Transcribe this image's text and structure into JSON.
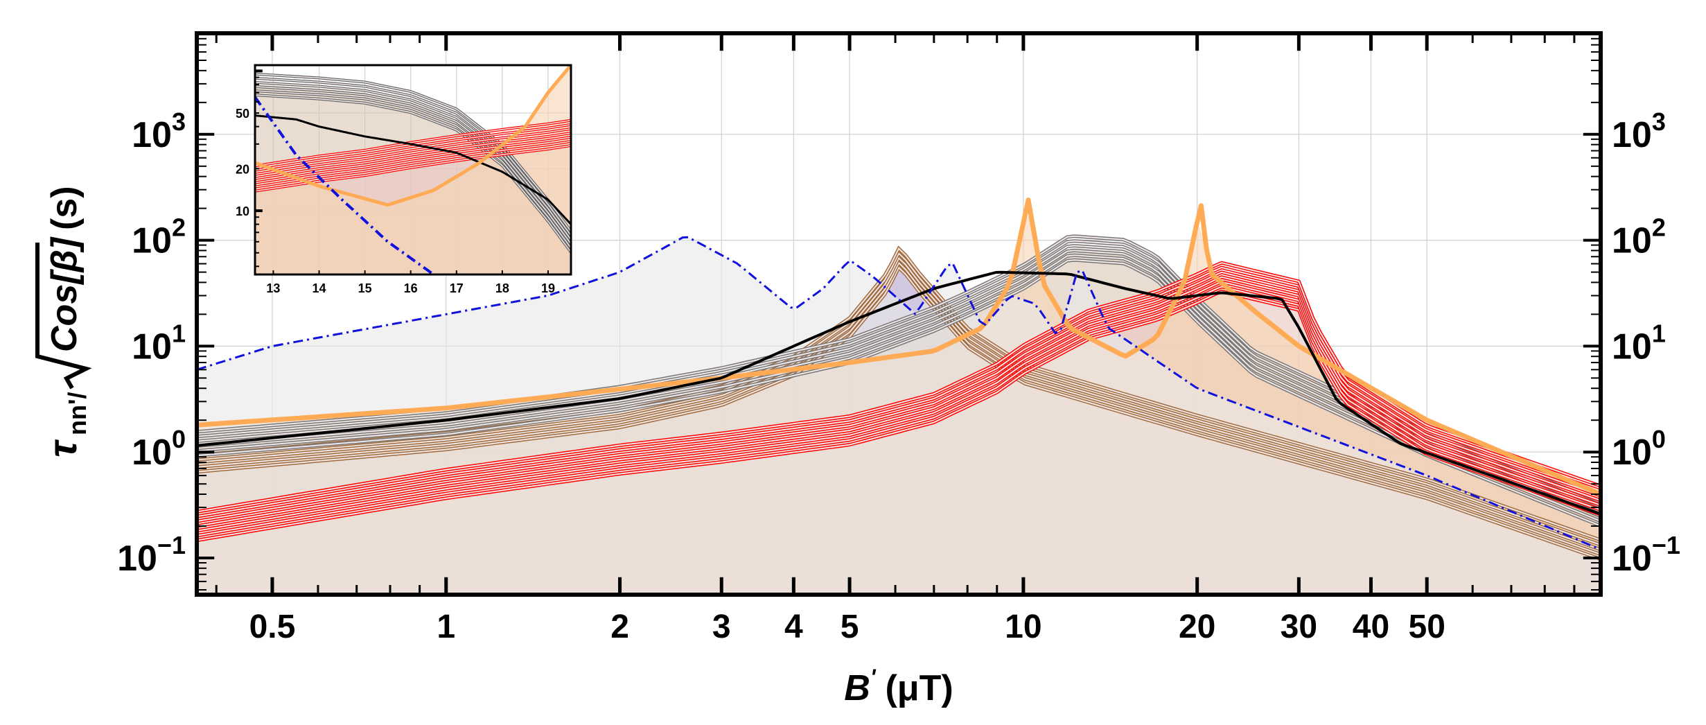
{
  "chart_data": [
    {
      "id": "main",
      "type": "line",
      "xscale": "log",
      "yscale": "log",
      "xlim": [
        0.37,
        100
      ],
      "ylim": [
        0.045,
        9000
      ],
      "xlabel": "B' (μT)",
      "xlabel_main": "B",
      "xlabel_prime": "'",
      "xlabel_unit": "(μT)",
      "ylabel_tau": "τ",
      "ylabel_sub": "nn'/",
      "ylabel_radicand": "Cos[β]",
      "ylabel_unit": "(s)",
      "x_ticks": [
        {
          "value": 0.5,
          "label": "0.5"
        },
        {
          "value": 1,
          "label": "1"
        },
        {
          "value": 2,
          "label": "2"
        },
        {
          "value": 3,
          "label": "3"
        },
        {
          "value": 4,
          "label": "4"
        },
        {
          "value": 5,
          "label": "5"
        },
        {
          "value": 10,
          "label": "10"
        },
        {
          "value": 20,
          "label": "20"
        },
        {
          "value": 30,
          "label": "30"
        },
        {
          "value": 40,
          "label": "40"
        },
        {
          "value": 50,
          "label": "50"
        }
      ],
      "y_ticks": [
        {
          "value": 0.1,
          "base": "10",
          "exp": "−1"
        },
        {
          "value": 1,
          "base": "10",
          "exp": "0"
        },
        {
          "value": 10,
          "base": "10",
          "exp": "1"
        },
        {
          "value": 100,
          "base": "10",
          "exp": "2"
        },
        {
          "value": 1000,
          "base": "10",
          "exp": "3"
        }
      ],
      "grid": true,
      "series": [
        {
          "name": "purple-band",
          "color": "#a06a3c",
          "fill": "#b8a6d0",
          "bundle": 5,
          "style": "bundle",
          "points": [
            [
              0.37,
              0.8
            ],
            [
              1,
              1.3
            ],
            [
              2,
              2.1
            ],
            [
              3,
              3.4
            ],
            [
              4,
              6.5
            ],
            [
              5,
              15
            ],
            [
              5.8,
              40
            ],
            [
              6.1,
              70
            ],
            [
              6.6,
              40
            ],
            [
              8,
              12
            ],
            [
              10,
              5.5
            ],
            [
              20,
              1.8
            ],
            [
              50,
              0.45
            ],
            [
              100,
              0.12
            ]
          ]
        },
        {
          "name": "gray-band",
          "color": "#777777",
          "fill": "#dcc8b4",
          "bundle": 6,
          "style": "bundle",
          "points": [
            [
              0.37,
              1.2
            ],
            [
              1,
              1.9
            ],
            [
              2,
              3.2
            ],
            [
              3,
              4.8
            ],
            [
              5,
              9
            ],
            [
              7,
              18
            ],
            [
              8,
              25
            ],
            [
              10,
              45
            ],
            [
              12,
              85
            ],
            [
              15,
              78
            ],
            [
              17,
              55
            ],
            [
              20,
              22
            ],
            [
              25,
              7
            ],
            [
              50,
              1.2
            ],
            [
              100,
              0.26
            ]
          ]
        },
        {
          "name": "red-band",
          "color": "#ff0000",
          "fill": "#e8c6c0",
          "bundle": 7,
          "style": "bundle",
          "points": [
            [
              0.37,
              0.2
            ],
            [
              1,
              0.5
            ],
            [
              2,
              0.85
            ],
            [
              3,
              1.1
            ],
            [
              5,
              1.6
            ],
            [
              7,
              2.6
            ],
            [
              9,
              5
            ],
            [
              10,
              7.5
            ],
            [
              13,
              16
            ],
            [
              17,
              24
            ],
            [
              20,
              35
            ],
            [
              22,
              45
            ],
            [
              25,
              38
            ],
            [
              30,
              30
            ],
            [
              32,
              12
            ],
            [
              36,
              4
            ],
            [
              50,
              1.3
            ],
            [
              100,
              0.35
            ]
          ]
        },
        {
          "name": "orange",
          "color": "#ffaa55",
          "fill": "#f5d5b5",
          "bundle": 1,
          "style": "solid",
          "width": 7,
          "points": [
            [
              0.37,
              1.8
            ],
            [
              1,
              2.6
            ],
            [
              3,
              5
            ],
            [
              5,
              7
            ],
            [
              7,
              9
            ],
            [
              8.5,
              15
            ],
            [
              9.5,
              40
            ],
            [
              10.2,
              240
            ],
            [
              10.8,
              40
            ],
            [
              12,
              15
            ],
            [
              15,
              8
            ],
            [
              17,
              12
            ],
            [
              19,
              40
            ],
            [
              20.3,
              220
            ],
            [
              21,
              50
            ],
            [
              25,
              22
            ],
            [
              30,
              10
            ],
            [
              50,
              2
            ],
            [
              100,
              0.4
            ]
          ]
        },
        {
          "name": "black",
          "color": "#000000",
          "fill": "none",
          "bundle": 1,
          "style": "solid",
          "width": 4,
          "points": [
            [
              0.37,
              1.15
            ],
            [
              1,
              2
            ],
            [
              2,
              3.2
            ],
            [
              3,
              5
            ],
            [
              4,
              10
            ],
            [
              5,
              17
            ],
            [
              7,
              35
            ],
            [
              9,
              50
            ],
            [
              12,
              48
            ],
            [
              15,
              35
            ],
            [
              18,
              28
            ],
            [
              22,
              32
            ],
            [
              28,
              28
            ],
            [
              30,
              15
            ],
            [
              35,
              3
            ],
            [
              45,
              1.2
            ],
            [
              100,
              0.26
            ]
          ]
        },
        {
          "name": "blue-dash-dot",
          "color": "#1111dd",
          "fill": "#e8e8e8",
          "bundle": 1,
          "style": "dashdot",
          "width": 3,
          "points": [
            [
              0.37,
              6
            ],
            [
              0.5,
              10
            ],
            [
              1,
              20
            ],
            [
              1.5,
              30
            ],
            [
              2,
              50
            ],
            [
              2.6,
              110
            ],
            [
              3.2,
              60
            ],
            [
              4,
              22
            ],
            [
              4.5,
              35
            ],
            [
              5,
              65
            ],
            [
              5.5,
              45
            ],
            [
              6.5,
              20
            ],
            [
              7.5,
              65
            ],
            [
              8.5,
              15
            ],
            [
              9.5,
              30
            ],
            [
              10.5,
              25
            ],
            [
              11.5,
              12
            ],
            [
              12.5,
              60
            ],
            [
              14,
              15
            ],
            [
              20,
              4
            ],
            [
              50,
              0.6
            ],
            [
              100,
              0.12
            ]
          ]
        }
      ]
    },
    {
      "id": "inset",
      "type": "line",
      "xscale": "linear",
      "yscale": "log",
      "xlim": [
        12.6,
        19.5
      ],
      "ylim": [
        3.5,
        110
      ],
      "x_ticks": [
        {
          "value": 13,
          "label": "13"
        },
        {
          "value": 14,
          "label": "14"
        },
        {
          "value": 15,
          "label": "15"
        },
        {
          "value": 16,
          "label": "16"
        },
        {
          "value": 17,
          "label": "17"
        },
        {
          "value": 18,
          "label": "18"
        },
        {
          "value": 19,
          "label": "19"
        }
      ],
      "y_ticks": [
        {
          "value": 10,
          "label": "10"
        },
        {
          "value": 20,
          "label": "20"
        },
        {
          "value": 50,
          "label": "50"
        }
      ],
      "grid": true,
      "series": [
        {
          "name": "gray-band",
          "color": "#666666",
          "fill": "#dcc8b4",
          "bundle": 6,
          "style": "bundle",
          "points": [
            [
              12.6,
              80
            ],
            [
              14,
              75
            ],
            [
              15,
              70
            ],
            [
              16,
              60
            ],
            [
              17,
              45
            ],
            [
              18,
              25
            ],
            [
              19,
              10
            ],
            [
              19.5,
              6
            ]
          ]
        },
        {
          "name": "red-band",
          "color": "#ff0000",
          "fill": "#e8c6c0",
          "bundle": 7,
          "style": "bundle",
          "points": [
            [
              12.6,
              17
            ],
            [
              14,
              20
            ],
            [
              15,
              22
            ],
            [
              16,
              25
            ],
            [
              17,
              28
            ],
            [
              18,
              31
            ],
            [
              19,
              34
            ],
            [
              19.5,
              36
            ]
          ]
        },
        {
          "name": "black",
          "color": "#000000",
          "fill": "none",
          "bundle": 1,
          "style": "solid",
          "width": 3,
          "points": [
            [
              12.6,
              48
            ],
            [
              13.5,
              45
            ],
            [
              14,
              40
            ],
            [
              15,
              34
            ],
            [
              16,
              30
            ],
            [
              17,
              26
            ],
            [
              18,
              19
            ],
            [
              19,
              12
            ],
            [
              19.5,
              8
            ]
          ]
        },
        {
          "name": "orange",
          "color": "#ffaa55",
          "fill": "#f5d5b5",
          "bundle": 1,
          "style": "solid",
          "width": 5,
          "points": [
            [
              12.6,
              22
            ],
            [
              14,
              15
            ],
            [
              15.5,
              11
            ],
            [
              16.5,
              14
            ],
            [
              17.5,
              22
            ],
            [
              18.5,
              40
            ],
            [
              19,
              70
            ],
            [
              19.5,
              110
            ]
          ]
        },
        {
          "name": "blue-dash-dot",
          "color": "#1111dd",
          "fill": "none",
          "bundle": 1,
          "style": "dashdot",
          "width": 4,
          "points": [
            [
              12.6,
              65
            ],
            [
              13.5,
              25
            ],
            [
              14.5,
              12
            ],
            [
              15.5,
              6
            ],
            [
              16.5,
              3.5
            ]
          ]
        }
      ]
    }
  ]
}
